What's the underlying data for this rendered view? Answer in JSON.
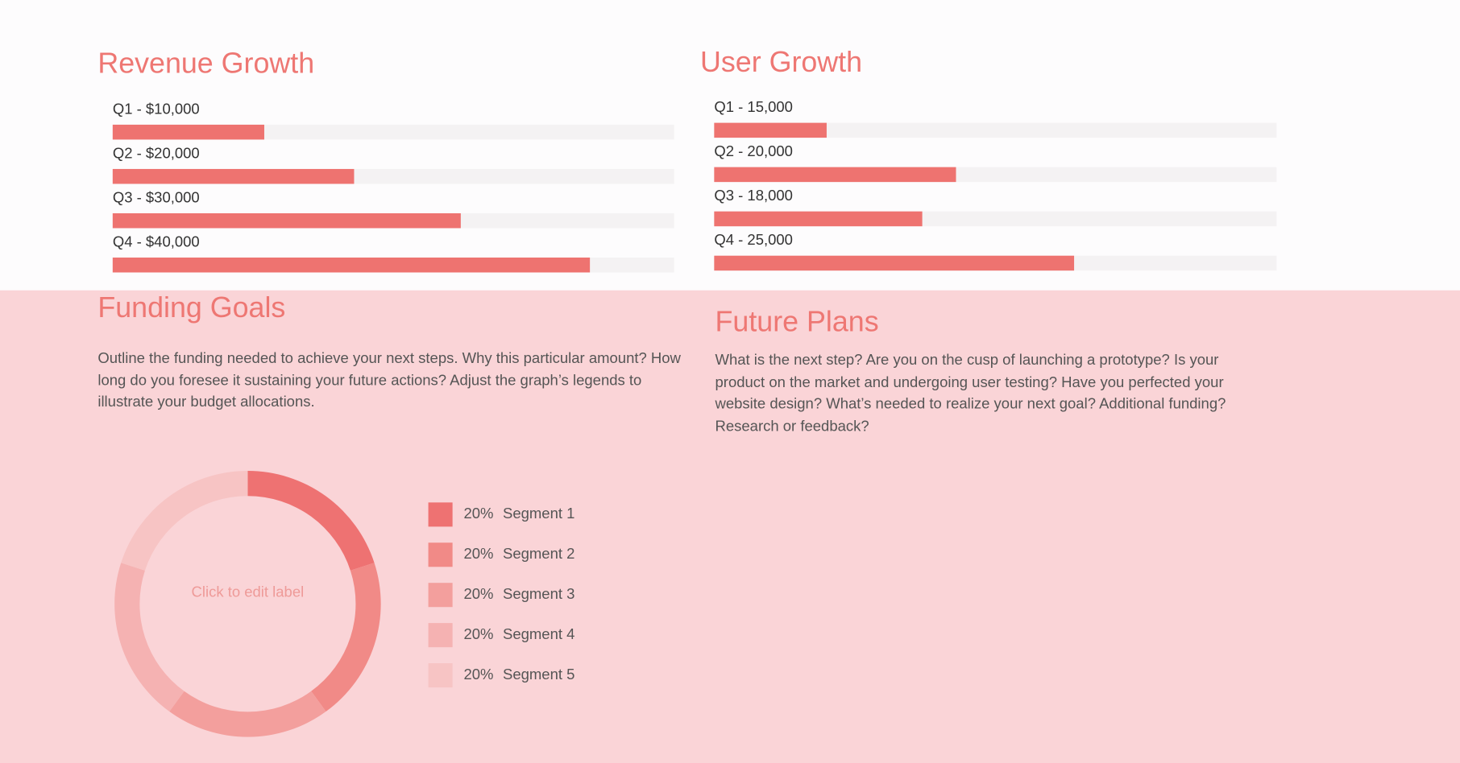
{
  "chart_data": [
    {
      "type": "bar",
      "orientation": "horizontal",
      "title": "Revenue Growth",
      "categories": [
        "Q1 - $10,000",
        "Q2 - $20,000",
        "Q3 - $30,000",
        "Q4 - $40,000"
      ],
      "values": [
        27,
        43,
        62,
        85
      ],
      "xlim": [
        0,
        100
      ],
      "color": "#ee7370",
      "track_color": "#f4f2f3"
    },
    {
      "type": "bar",
      "orientation": "horizontal",
      "title": "User Growth",
      "categories": [
        "Q1 - 15,000",
        "Q2 - 20,000",
        "Q3 - 18,000",
        "Q4 - 25,000"
      ],
      "values": [
        20,
        43,
        37,
        64
      ],
      "xlim": [
        0,
        100
      ],
      "color": "#ee7370",
      "track_color": "#f4f2f3"
    },
    {
      "type": "pie",
      "donut": true,
      "center_label": "Click to edit label",
      "categories": [
        "Segment 1",
        "Segment 2",
        "Segment 3",
        "Segment 4",
        "Segment 5"
      ],
      "values": [
        20,
        20,
        20,
        20,
        20
      ],
      "value_labels": [
        "20%",
        "20%",
        "20%",
        "20%",
        "20%"
      ],
      "colors": [
        "#ee7272",
        "#f18a87",
        "#f39f9d",
        "#f5b2b2",
        "#f7c4c4"
      ]
    }
  ],
  "funding_goals": {
    "title": "Funding Goals",
    "text": "Outline the funding needed to achieve your next steps. Why this particular amount? How long do you foresee it sustaining your future actions? Adjust the graph’s legends to illustrate your budget allocations."
  },
  "future_plans": {
    "title": "Future Plans",
    "text": "What is the next step? Are you on the cusp of launching a prototype? Is your product on the market and undergoing user testing? Have you perfected your website design? What’s needed to realize your next goal? Additional funding? Research or feedback?"
  }
}
